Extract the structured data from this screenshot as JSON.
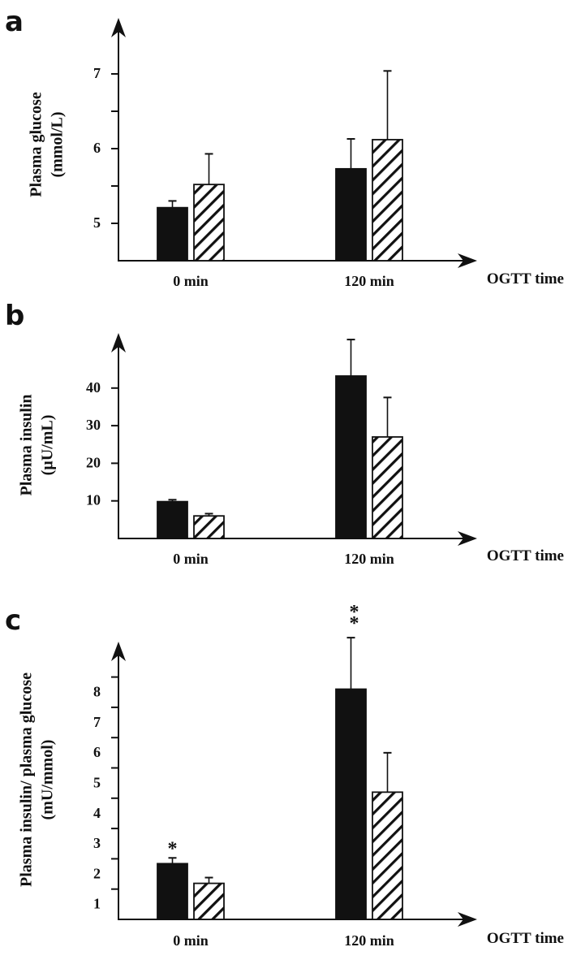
{
  "colors": {
    "ink": "#111111",
    "background": "#ffffff",
    "group1_fill": "#111111",
    "group2_fill": "hatched"
  },
  "chart_data": [
    {
      "type": "bar",
      "panel_label": "a",
      "ylabel_line1": "Plasma glucose",
      "ylabel_line2": "(mmol/L)",
      "xlabel": "OGTT time",
      "categories": [
        "0 min",
        "120 min"
      ],
      "yticks": [
        5,
        5.5,
        6,
        6.5,
        7
      ],
      "ytick_labels": [
        "5",
        "",
        "6",
        "",
        "7"
      ],
      "ylim": [
        4.5,
        7.5
      ],
      "series": [
        {
          "name": "group 1 (solid black)",
          "pattern": "solid",
          "values": [
            5.21,
            5.73
          ],
          "error_upper": [
            5.3,
            6.13
          ]
        },
        {
          "name": "group 2 (hatched)",
          "pattern": "hatched",
          "values": [
            5.52,
            6.12
          ],
          "error_upper": [
            5.93,
            7.04
          ]
        }
      ],
      "annotations": []
    },
    {
      "type": "bar",
      "panel_label": "b",
      "ylabel_line1": "Plasma insulin",
      "ylabel_line2": "(µU/mL)",
      "xlabel": "OGTT time",
      "categories": [
        "0 min",
        "120 min"
      ],
      "yticks": [
        10,
        20,
        30,
        40
      ],
      "ytick_labels": [
        "10",
        "20",
        "30",
        "40"
      ],
      "ylim": [
        0,
        55
      ],
      "series": [
        {
          "name": "group 1 (solid black)",
          "pattern": "solid",
          "values": [
            9.8,
            43.2
          ],
          "error_upper": [
            10.3,
            52.9
          ]
        },
        {
          "name": "group 2 (hatched)",
          "pattern": "hatched",
          "values": [
            6.0,
            27.0
          ],
          "error_upper": [
            6.6,
            37.5
          ]
        }
      ],
      "annotations": []
    },
    {
      "type": "bar",
      "panel_label": "c",
      "ylabel_line1": "Plasma insulin/ plasma glucose",
      "ylabel_line2": "(mU/mmol)",
      "xlabel": "OGTT time",
      "categories": [
        "0 min",
        "120 min"
      ],
      "yticks": [
        1,
        2,
        3,
        4,
        5,
        6,
        7,
        8
      ],
      "ytick_labels": [
        "1",
        "2",
        "3",
        "4",
        "5",
        "6",
        "7",
        "8"
      ],
      "ylim": [
        0,
        9.5
      ],
      "series": [
        {
          "name": "group 1 (solid black)",
          "pattern": "solid",
          "values": [
            1.84,
            7.6
          ],
          "error_upper": [
            2.03,
            9.3
          ]
        },
        {
          "name": "group 2 (hatched)",
          "pattern": "hatched",
          "values": [
            1.19,
            4.2
          ],
          "error_upper": [
            1.38,
            5.5
          ]
        }
      ],
      "annotations": [
        {
          "category": 0,
          "series": 0,
          "text": "*"
        },
        {
          "category": 1,
          "series": 0,
          "text": "**"
        }
      ]
    }
  ]
}
